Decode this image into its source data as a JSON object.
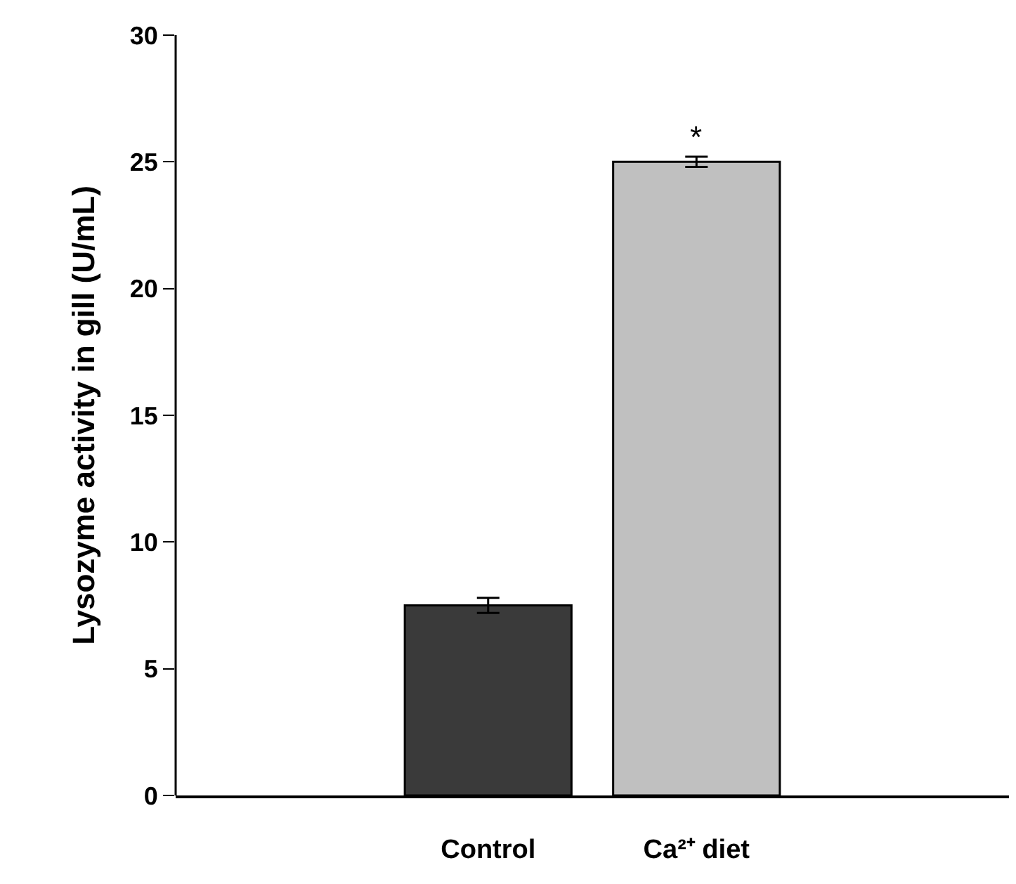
{
  "chart_data": {
    "type": "bar",
    "ylabel": "Lysozyme activity in gill (U/mL)",
    "categories": [
      null,
      "Control",
      "Ca²⁺ diet",
      null
    ],
    "values": [
      null,
      7.5,
      25,
      null
    ],
    "colors": [
      "#3a3a3a",
      "#3a3a3a",
      "#c0c0c0",
      "#c0c0c0"
    ],
    "errors": [
      null,
      0.3,
      0.2,
      null
    ],
    "ylim": [
      0,
      30
    ],
    "yticks": [
      0,
      5,
      10,
      15,
      20,
      25,
      30
    ],
    "annotations": [
      {
        "text": "*",
        "x": "Ca²⁺ diet",
        "y": 25.2
      }
    ]
  }
}
